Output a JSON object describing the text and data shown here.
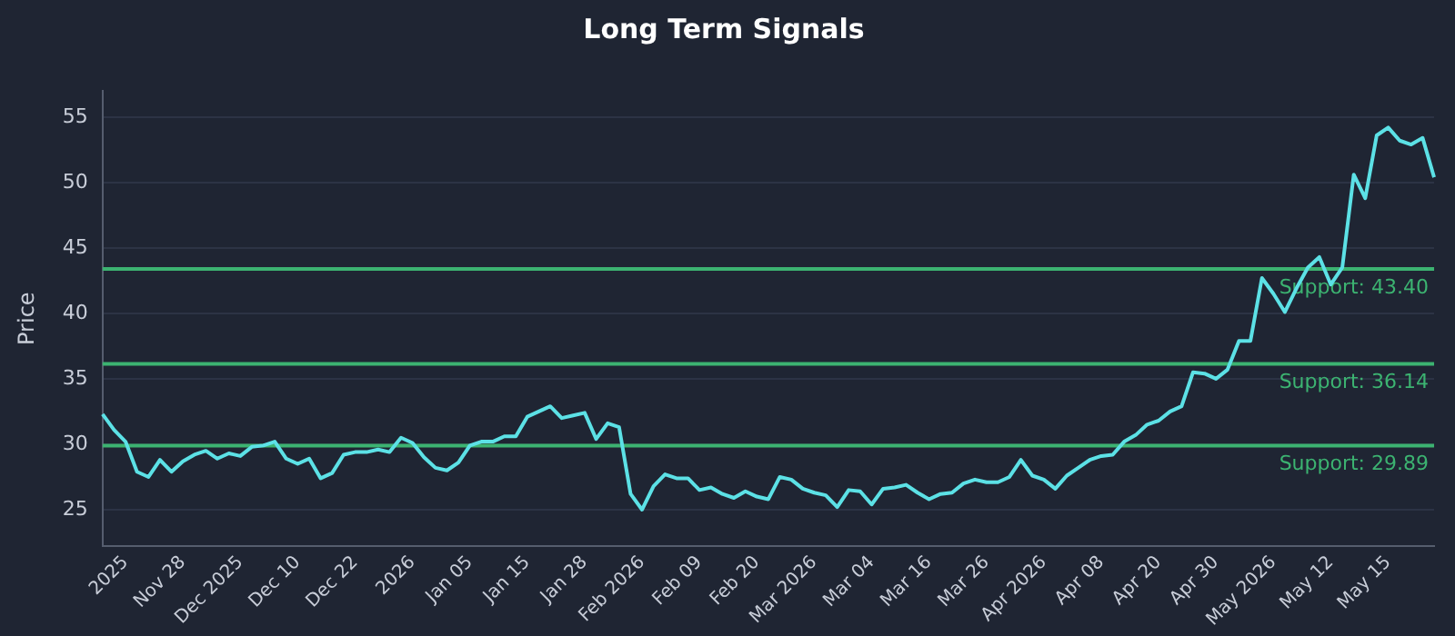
{
  "chart_data": {
    "type": "line",
    "title": "Long Term Signals",
    "ylabel": "Price",
    "categories": [
      null,
      null,
      "2025",
      null,
      null,
      null,
      null,
      "Nov 28",
      null,
      null,
      null,
      null,
      "Dec 2025",
      null,
      null,
      null,
      null,
      "Dec 10",
      null,
      null,
      null,
      null,
      "Dec 22",
      null,
      null,
      null,
      null,
      "2026",
      null,
      null,
      null,
      null,
      "Jan 05",
      null,
      null,
      null,
      null,
      "Jan 15",
      null,
      null,
      null,
      null,
      "Jan 28",
      null,
      null,
      null,
      null,
      "Feb 2026",
      null,
      null,
      null,
      null,
      "Feb 09",
      null,
      null,
      null,
      null,
      "Feb 20",
      null,
      null,
      null,
      null,
      "Mar 2026",
      null,
      null,
      null,
      null,
      "Mar 04",
      null,
      null,
      null,
      null,
      "Mar 16",
      null,
      null,
      null,
      null,
      "Mar 26",
      null,
      null,
      null,
      null,
      "Apr 2026",
      null,
      null,
      null,
      null,
      "Apr 08",
      null,
      null,
      null,
      null,
      "Apr 20",
      null,
      null,
      null,
      null,
      "Apr 30",
      null,
      null,
      null,
      null,
      "May 2026",
      null,
      null,
      null,
      null,
      "May 12",
      null,
      null,
      null,
      null,
      "May 15",
      null,
      null,
      null,
      null
    ],
    "series": [
      {
        "color": "#5ce1e6",
        "values": [
          32.3,
          31.1,
          30.2,
          27.9,
          27.5,
          28.8,
          27.9,
          28.7,
          29.2,
          29.5,
          28.9,
          29.3,
          29.1,
          29.8,
          29.9,
          30.2,
          28.9,
          28.5,
          28.9,
          27.4,
          27.8,
          29.2,
          29.4,
          29.4,
          29.6,
          29.4,
          30.5,
          30.1,
          29.0,
          28.2,
          28.0,
          28.6,
          29.9,
          30.2,
          30.2,
          30.6,
          30.6,
          32.1,
          32.5,
          32.9,
          32.0,
          32.2,
          32.4,
          30.4,
          31.6,
          31.3,
          26.2,
          25.0,
          26.8,
          27.7,
          27.4,
          27.4,
          26.5,
          26.7,
          26.2,
          25.9,
          26.4,
          26.0,
          25.8,
          27.5,
          27.3,
          26.6,
          26.3,
          26.1,
          25.2,
          26.5,
          26.4,
          25.4,
          26.6,
          26.7,
          26.9,
          26.3,
          25.8,
          26.2,
          26.3,
          27.0,
          27.3,
          27.1,
          27.1,
          27.5,
          28.8,
          27.6,
          27.3,
          26.6,
          27.6,
          28.2,
          28.8,
          29.1,
          29.2,
          30.2,
          30.7,
          31.5,
          31.8,
          32.5,
          32.9,
          35.5,
          35.4,
          35.0,
          35.7,
          37.9,
          37.9,
          42.7,
          41.5,
          40.1,
          41.9,
          43.5,
          44.3,
          42.2,
          43.5,
          50.6,
          48.8,
          53.6,
          54.2,
          53.2,
          52.9,
          53.4,
          50.4
        ]
      }
    ],
    "ylim": [
      22.2,
      57
    ],
    "yticks": [
      25,
      30,
      35,
      40,
      45,
      50,
      55
    ],
    "grid": "y",
    "legend": false,
    "marker": "none",
    "line_style": "solid",
    "ref_lines": [
      {
        "axis": "y",
        "value": 43.4,
        "label": "Support: 43.40",
        "color": "#3cb371"
      },
      {
        "axis": "y",
        "value": 36.14,
        "label": "Support: 36.14",
        "color": "#3cb371"
      },
      {
        "axis": "y",
        "value": 29.89,
        "label": "Support: 29.89",
        "color": "#3cb371"
      }
    ]
  }
}
